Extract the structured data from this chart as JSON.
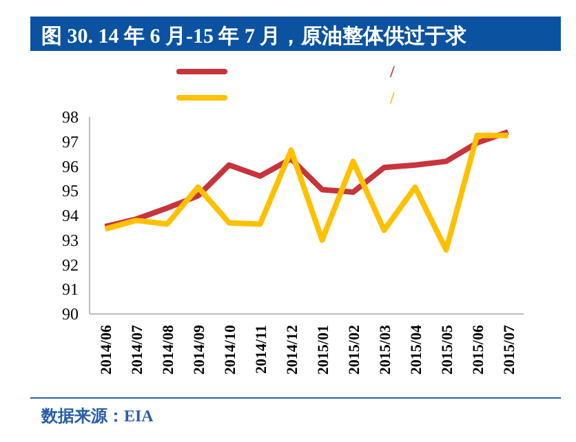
{
  "chart_data": {
    "type": "line",
    "title": "图 30. 14 年 6 月-15 年 7 月，原油整体供过于求",
    "categories": [
      "2014/06",
      "2014/07",
      "2014/08",
      "2014/09",
      "2014/10",
      "2014/11",
      "2014/12",
      "2015/01",
      "2015/02",
      "2015/03",
      "2015/04",
      "2015/05",
      "2015/06",
      "2015/07"
    ],
    "series": [
      {
        "name": "/",
        "color": "#c8343c",
        "values": [
          93.55,
          93.85,
          94.3,
          94.8,
          96.05,
          95.6,
          96.3,
          95.05,
          94.95,
          95.95,
          96.05,
          96.2,
          96.95,
          97.4
        ]
      },
      {
        "name": "/",
        "color": "#ffc000",
        "values": [
          93.45,
          93.8,
          93.65,
          95.15,
          93.7,
          93.65,
          96.65,
          93.0,
          96.2,
          93.4,
          95.15,
          92.6,
          97.25,
          97.25
        ]
      }
    ],
    "ylim": [
      90,
      98
    ],
    "yticks": [
      90,
      91,
      92,
      93,
      94,
      95,
      96,
      97,
      98
    ],
    "grid": false,
    "legend": "top",
    "marker": "none",
    "line_style": "solid",
    "annotations": [
      "数据来源：EIA"
    ]
  }
}
